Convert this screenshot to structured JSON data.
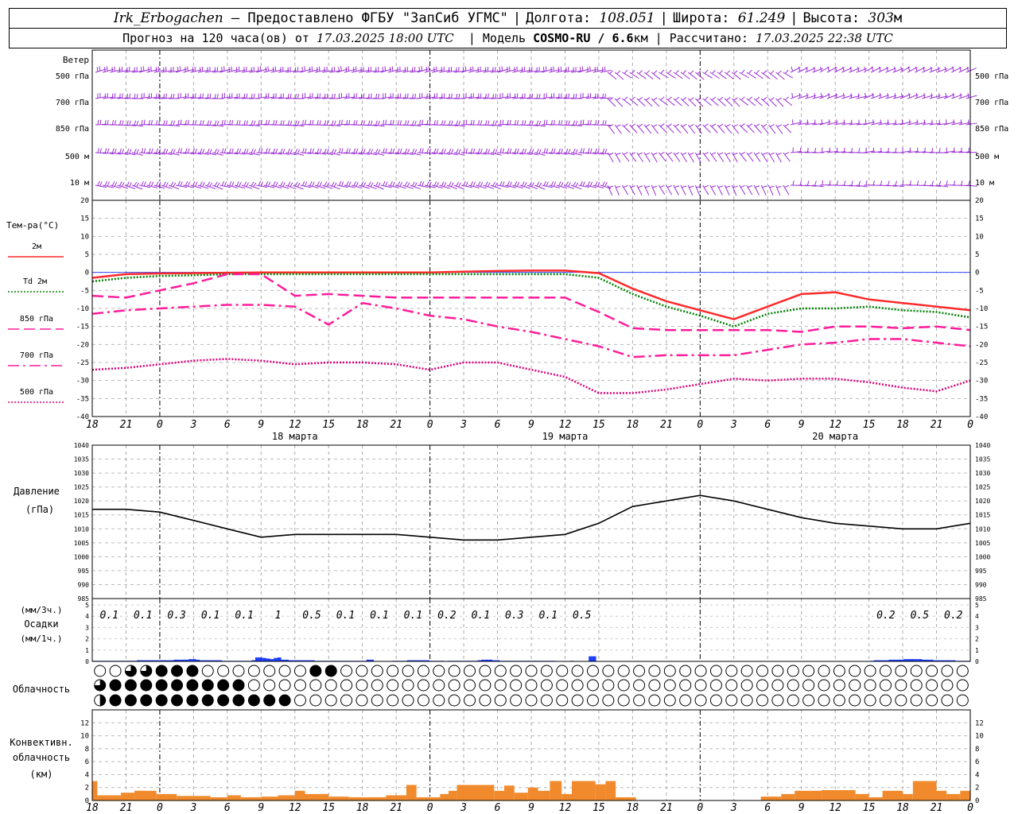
{
  "header": {
    "station": "Irk_Erbogachen",
    "provider": "– Предоставлено ФГБУ \"ЗапСиб УГМС\"",
    "lon_label": "Долгота:",
    "lon": "108.051",
    "lat_label": "Широта:",
    "lat": "61.249",
    "alt_label": "Высота:",
    "alt": "303",
    "alt_unit": "м",
    "forecast_label": "Прогноз на 120 часа(ов) от",
    "forecast_start": "17.03.2025 18:00 UTC",
    "model_label": "| Модель",
    "model": "COSMO-RU / 6.6",
    "model_unit": "км",
    "calc_label": "| Рассчитано:",
    "calc_time": "17.03.2025 22:38 UTC"
  },
  "chart_data": {
    "type": "meteogram",
    "time_ticks": [
      "18",
      "21",
      "0",
      "3",
      "6",
      "9",
      "12",
      "15",
      "18",
      "21",
      "0",
      "3",
      "6",
      "9",
      "12",
      "15",
      "18",
      "21",
      "0",
      "3",
      "6",
      "9",
      "12",
      "15",
      "18",
      "21",
      "0"
    ],
    "day_labels": [
      "18 марта",
      "19 марта",
      "20 марта"
    ],
    "colors": {
      "wind": "#9b2fd6",
      "t2m": "#ff2a2a",
      "td2m": "#008000",
      "t850": "#ff1c9b",
      "t700": "#ff1c9b",
      "t500": "#dd0077",
      "zero": "#3344ff",
      "pressure": "#000000",
      "precip": "#1a3cff",
      "conv": "#f08a2c"
    },
    "wind": {
      "title": "Ветер",
      "levels": [
        "500 гПа",
        "700 гПа",
        "850 гПа",
        "500 м",
        "10 м"
      ]
    },
    "temperature": {
      "title": "Тем-ра(°C)",
      "ylim": [
        -40,
        20
      ],
      "ticks": [
        20,
        15,
        10,
        5,
        0,
        -5,
        -10,
        -15,
        -20,
        -25,
        -30,
        -35,
        -40
      ],
      "series": [
        {
          "name": "2м",
          "key": "t2m",
          "style": "solid",
          "x": [
            0,
            1,
            2,
            3,
            4,
            5,
            6,
            7,
            8,
            9,
            10,
            11,
            12,
            13,
            14,
            15,
            16,
            17,
            18,
            19,
            20,
            21,
            22,
            23,
            24,
            25,
            26
          ],
          "values": [
            -1.5,
            -0.5,
            -0.3,
            -0.2,
            -0.1,
            0.0,
            0.0,
            0.0,
            0.0,
            0.0,
            0.0,
            0.2,
            0.4,
            0.5,
            0.5,
            -0.2,
            -4.5,
            -8.0,
            -10.5,
            -13.0,
            -9.5,
            -6.0,
            -5.5,
            -7.5,
            -8.5,
            -9.5,
            -10.5
          ]
        },
        {
          "name": "Td 2м",
          "key": "td2m",
          "style": "dotted",
          "x": [
            0,
            1,
            2,
            3,
            4,
            5,
            6,
            7,
            8,
            9,
            10,
            11,
            12,
            13,
            14,
            15,
            16,
            17,
            18,
            19,
            20,
            21,
            22,
            23,
            24,
            25,
            26
          ],
          "values": [
            -2.5,
            -1.5,
            -1.0,
            -0.8,
            -0.5,
            -0.5,
            -0.5,
            -0.5,
            -0.5,
            -0.5,
            -0.5,
            -0.5,
            -0.5,
            -0.5,
            -0.5,
            -1.5,
            -6.0,
            -9.5,
            -12.0,
            -15.0,
            -11.5,
            -10.0,
            -10.0,
            -9.5,
            -10.5,
            -11.0,
            -12.5
          ]
        },
        {
          "name": "850 гПа",
          "key": "t850",
          "style": "dash",
          "x": [
            0,
            1,
            2,
            3,
            4,
            5,
            6,
            7,
            8,
            9,
            10,
            11,
            12,
            13,
            14,
            15,
            16,
            17,
            18,
            19,
            20,
            21,
            22,
            23,
            24,
            25,
            26
          ],
          "values": [
            -6.5,
            -7.0,
            -5.0,
            -3.0,
            -0.5,
            -0.5,
            -6.5,
            -6.0,
            -6.5,
            -7.0,
            -7.0,
            -7.0,
            -7.0,
            -7.0,
            -7.0,
            -11.0,
            -15.5,
            -16.0,
            -16.0,
            -16.0,
            -16.0,
            -16.5,
            -15.0,
            -15.0,
            -15.5,
            -15.0,
            -16.0
          ]
        },
        {
          "name": "700 гПа",
          "key": "t700",
          "style": "dashdot",
          "x": [
            0,
            1,
            2,
            3,
            4,
            5,
            6,
            7,
            8,
            9,
            10,
            11,
            12,
            13,
            14,
            15,
            16,
            17,
            18,
            19,
            20,
            21,
            22,
            23,
            24,
            25,
            26
          ],
          "values": [
            -11.5,
            -10.5,
            -10.0,
            -9.5,
            -9.0,
            -9.0,
            -9.5,
            -14.5,
            -8.5,
            -10.0,
            -12.0,
            -13.0,
            -15.0,
            -16.5,
            -18.5,
            -20.5,
            -23.5,
            -23.0,
            -23.0,
            -23.0,
            -21.5,
            -20.0,
            -19.5,
            -18.5,
            -18.5,
            -19.5,
            -20.5
          ]
        },
        {
          "name": "500 гПа",
          "key": "t500",
          "style": "dotted",
          "x": [
            0,
            1,
            2,
            3,
            4,
            5,
            6,
            7,
            8,
            9,
            10,
            11,
            12,
            13,
            14,
            15,
            16,
            17,
            18,
            19,
            20,
            21,
            22,
            23,
            24,
            25,
            26
          ],
          "values": [
            -27.0,
            -26.5,
            -25.5,
            -24.5,
            -24.0,
            -24.5,
            -25.5,
            -25.0,
            -25.0,
            -25.5,
            -27.0,
            -25.0,
            -25.0,
            -27.0,
            -29.0,
            -33.5,
            -33.5,
            -32.5,
            -31.0,
            -29.5,
            -30.0,
            -29.5,
            -29.5,
            -30.5,
            -32.0,
            -33.0,
            -30.0
          ]
        }
      ]
    },
    "pressure": {
      "title": "Давление",
      "unit": "(гПа)",
      "ylim": [
        985,
        1040
      ],
      "ticks": [
        1040,
        1035,
        1030,
        1025,
        1020,
        1015,
        1010,
        1005,
        1000,
        995,
        990,
        985
      ],
      "x": [
        0,
        1,
        2,
        3,
        4,
        5,
        6,
        7,
        8,
        9,
        10,
        11,
        12,
        13,
        14,
        15,
        16,
        17,
        18,
        19,
        20,
        21,
        22,
        23,
        24,
        25,
        26
      ],
      "values": [
        1017,
        1017,
        1016,
        1013,
        1010,
        1007,
        1008,
        1008,
        1008,
        1008,
        1007,
        1006,
        1006,
        1007,
        1008,
        1012,
        1018,
        1020,
        1022,
        1020,
        1017,
        1014,
        1012,
        1011,
        1010,
        1010,
        1012
      ]
    },
    "precipitation": {
      "unit_top": "(мм/3ч.)",
      "title": "Осадки",
      "unit_bottom": "(мм/1ч.)",
      "ylim": [
        0,
        5
      ],
      "ticks": [
        5,
        4,
        3,
        2,
        1,
        0
      ],
      "totals": [
        {
          "x": 0.5,
          "label": "0.1"
        },
        {
          "x": 1.5,
          "label": "0.1"
        },
        {
          "x": 2.5,
          "label": "0.3"
        },
        {
          "x": 3.5,
          "label": "0.1"
        },
        {
          "x": 4.5,
          "label": "0.1"
        },
        {
          "x": 5.5,
          "label": "1"
        },
        {
          "x": 6.5,
          "label": "0.5"
        },
        {
          "x": 7.5,
          "label": "0.1"
        },
        {
          "x": 8.5,
          "label": "0.1"
        },
        {
          "x": 9.5,
          "label": "0.1"
        },
        {
          "x": 10.5,
          "label": "0.2"
        },
        {
          "x": 11.5,
          "label": "0.1"
        },
        {
          "x": 12.5,
          "label": "0.3"
        },
        {
          "x": 13.5,
          "label": "0.1"
        },
        {
          "x": 14.5,
          "label": "0.5"
        },
        {
          "x": 23.5,
          "label": "0.2"
        },
        {
          "x": 24.5,
          "label": "0.5"
        },
        {
          "x": 25.5,
          "label": "0.2"
        }
      ],
      "hourly": [
        0.05,
        0.05,
        0.05,
        0.05,
        0.05,
        0.05,
        0.05,
        0.05,
        0.05,
        0.05,
        0.05,
        0.05,
        0.1,
        0.1,
        0.1,
        0.1,
        0.1,
        0.1,
        0.1,
        0.1,
        0.1,
        0.1,
        0.15,
        0.15,
        0.15,
        0.15,
        0.2,
        0.2,
        0.15,
        0.1,
        0.1,
        0.1,
        0.1,
        0.1,
        0.1,
        0.05,
        0.05,
        0.05,
        0.05,
        0.05,
        0.05,
        0.05,
        0.05,
        0.1,
        0.35,
        0.35,
        0.3,
        0.25,
        0.2,
        0.3,
        0.35,
        0.15,
        0.15,
        0.1,
        0.1,
        0.1,
        0.1,
        0.1,
        0.1,
        0.1,
        0.05,
        0.05,
        0.05,
        0.05,
        0.05,
        0.05,
        0.05,
        0.05,
        0.05,
        0.05,
        0.05,
        0.05,
        0.05,
        0.05,
        0.15,
        0.15,
        0.0,
        0.0,
        0.0,
        0.0,
        0.0,
        0.05,
        0.05,
        0.05,
        0.05,
        0.1,
        0.1,
        0.1,
        0.1,
        0.1,
        0.1,
        0.05,
        0.05,
        0.05,
        0.05,
        0.0,
        0.05,
        0.05,
        0.05,
        0.05,
        0.05,
        0.05,
        0.05,
        0.05,
        0.1,
        0.15,
        0.15,
        0.15,
        0.1,
        0.1,
        0.05,
        0.05,
        0.05,
        0.05,
        0.05,
        0.05,
        0.05,
        0.05,
        0.05,
        0.05,
        0.05,
        0.05,
        0.05,
        0.05,
        0.05,
        0.0,
        0.0,
        0.0,
        0.0,
        0.05,
        0.0,
        0.0,
        0.0,
        0.0,
        0.45,
        0.45,
        0.0,
        0.0,
        0.0,
        0.0,
        0.0,
        0.0,
        0.0,
        0.0,
        0.0,
        0.0,
        0.0,
        0.0,
        0.0,
        0.0,
        0.0,
        0.0,
        0.0,
        0.0,
        0.0,
        0.0,
        0.0,
        0.0,
        0.0,
        0.0,
        0.0,
        0.0,
        0.0,
        0.0,
        0.0,
        0.0,
        0.0,
        0.0,
        0.0,
        0.0,
        0.0,
        0.0,
        0.0,
        0.0,
        0.0,
        0.0,
        0.0,
        0.0,
        0.0,
        0.0,
        0.0,
        0.0,
        0.0,
        0.0,
        0.0,
        0.0,
        0.0,
        0.0,
        0.0,
        0.0,
        0.0,
        0.0,
        0.0,
        0.0,
        0.0,
        0.0,
        0.0,
        0.0,
        0.0,
        0.0,
        0.0,
        0.0,
        0.0,
        0.0,
        0.0,
        0.0,
        0.0,
        0.0,
        0.0,
        0.0,
        0.05,
        0.1,
        0.1,
        0.1,
        0.1,
        0.15,
        0.15,
        0.15,
        0.15,
        0.2,
        0.2,
        0.2,
        0.2,
        0.2,
        0.15,
        0.15,
        0.15,
        0.1,
        0.1,
        0.1,
        0.1,
        0.1,
        0.1,
        0.05,
        0.05,
        0.05,
        0.05
      ]
    },
    "cloudiness": {
      "title": "Облачность",
      "rows": [
        "000000003400341444004444400000000000000000000000000000034203442004000000000000000000000000000000000000000000000000000000000000000000000000000000000000000000000000000000000000000000000000000000000000000000000000000000000",
        "344442344444444444444444444444444444442000000000000000000000000000000000000000000000000000000000000000000000000000000000000000000000000000000000000000000000000000000000000000000000000000000000000000000000000000000000000000000",
        "244444444444444444444444444444444444444444444444444000000000000000000000000000000000000000000000000000000000000000000000000000000000000000000000000000000000000000000000000000000000000000000000000000000000000000000000000"
      ]
    },
    "convective": {
      "title": "Конвективн.",
      "subtitle": "облачность",
      "unit": "(км)",
      "ylim": [
        0,
        14
      ],
      "ticks": [
        12,
        10,
        8,
        6,
        4,
        2,
        0
      ],
      "bars": [
        {
          "x0": 0.0,
          "x1": 0.15,
          "bottom": 0,
          "top": 3.0
        },
        {
          "x0": 0.15,
          "x1": 0.85,
          "bottom": 0,
          "top": 0.8
        },
        {
          "x0": 0.85,
          "x1": 1.25,
          "bottom": 0,
          "top": 1.2
        },
        {
          "x0": 1.25,
          "x1": 1.9,
          "bottom": 0,
          "top": 1.5
        },
        {
          "x0": 1.9,
          "x1": 2.5,
          "bottom": 0,
          "top": 1.0
        },
        {
          "x0": 2.5,
          "x1": 3.5,
          "bottom": 0,
          "top": 0.7
        },
        {
          "x0": 3.5,
          "x1": 4.0,
          "bottom": 0,
          "top": 0.5
        },
        {
          "x0": 4.0,
          "x1": 4.4,
          "bottom": 0,
          "top": 0.8
        },
        {
          "x0": 4.4,
          "x1": 5.0,
          "bottom": 0,
          "top": 0.5
        },
        {
          "x0": 5.0,
          "x1": 5.5,
          "bottom": 0,
          "top": 0.6
        },
        {
          "x0": 5.5,
          "x1": 6.0,
          "bottom": 0,
          "top": 0.8
        },
        {
          "x0": 6.0,
          "x1": 6.3,
          "bottom": 0,
          "top": 1.5
        },
        {
          "x0": 6.3,
          "x1": 7.0,
          "bottom": 0,
          "top": 1.0
        },
        {
          "x0": 7.0,
          "x1": 7.6,
          "bottom": 0,
          "top": 0.6
        },
        {
          "x0": 7.6,
          "x1": 8.7,
          "bottom": 0,
          "top": 0.5
        },
        {
          "x0": 8.7,
          "x1": 9.3,
          "bottom": 0,
          "top": 0.8
        },
        {
          "x0": 9.3,
          "x1": 9.6,
          "bottom": 0,
          "top": 2.4
        },
        {
          "x0": 9.6,
          "x1": 10.3,
          "bottom": 0,
          "top": 0.5
        },
        {
          "x0": 10.3,
          "x1": 10.55,
          "bottom": 0,
          "top": 1.0
        },
        {
          "x0": 10.55,
          "x1": 10.8,
          "bottom": 0,
          "top": 1.5
        },
        {
          "x0": 10.8,
          "x1": 11.9,
          "bottom": 0,
          "top": 2.4
        },
        {
          "x0": 11.9,
          "x1": 12.2,
          "bottom": 0,
          "top": 1.5
        },
        {
          "x0": 12.2,
          "x1": 12.5,
          "bottom": 0,
          "top": 2.3
        },
        {
          "x0": 12.5,
          "x1": 12.9,
          "bottom": 0,
          "top": 1.2
        },
        {
          "x0": 12.9,
          "x1": 13.2,
          "bottom": 0,
          "top": 2.0
        },
        {
          "x0": 13.2,
          "x1": 13.55,
          "bottom": 0,
          "top": 1.5
        },
        {
          "x0": 13.55,
          "x1": 13.9,
          "bottom": 0,
          "top": 3.0
        },
        {
          "x0": 13.9,
          "x1": 14.2,
          "bottom": 0,
          "top": 1.0
        },
        {
          "x0": 14.2,
          "x1": 14.9,
          "bottom": 0,
          "top": 3.0
        },
        {
          "x0": 14.9,
          "x1": 15.2,
          "bottom": 0,
          "top": 2.5
        },
        {
          "x0": 15.2,
          "x1": 15.5,
          "bottom": 0,
          "top": 3.0
        },
        {
          "x0": 15.5,
          "x1": 16.1,
          "bottom": 0,
          "top": 0.5
        },
        {
          "x0": 19.8,
          "x1": 20.4,
          "bottom": 0,
          "top": 0.6
        },
        {
          "x0": 20.4,
          "x1": 20.8,
          "bottom": 0,
          "top": 1.0
        },
        {
          "x0": 20.8,
          "x1": 21.6,
          "bottom": 0,
          "top": 1.5
        },
        {
          "x0": 21.6,
          "x1": 22.6,
          "bottom": 0,
          "top": 1.6
        },
        {
          "x0": 22.6,
          "x1": 23.0,
          "bottom": 0,
          "top": 1.0
        },
        {
          "x0": 23.0,
          "x1": 23.4,
          "bottom": 0,
          "top": 0.5
        },
        {
          "x0": 23.4,
          "x1": 24.0,
          "bottom": 0,
          "top": 1.5
        },
        {
          "x0": 24.0,
          "x1": 24.3,
          "bottom": 0,
          "top": 1.0
        },
        {
          "x0": 24.3,
          "x1": 25.0,
          "bottom": 0,
          "top": 3.0
        },
        {
          "x0": 25.0,
          "x1": 25.3,
          "bottom": 0,
          "top": 1.5
        },
        {
          "x0": 25.3,
          "x1": 25.7,
          "bottom": 0,
          "top": 1.0
        },
        {
          "x0": 25.7,
          "x1": 26.0,
          "bottom": 0,
          "top": 1.5
        }
      ]
    }
  }
}
